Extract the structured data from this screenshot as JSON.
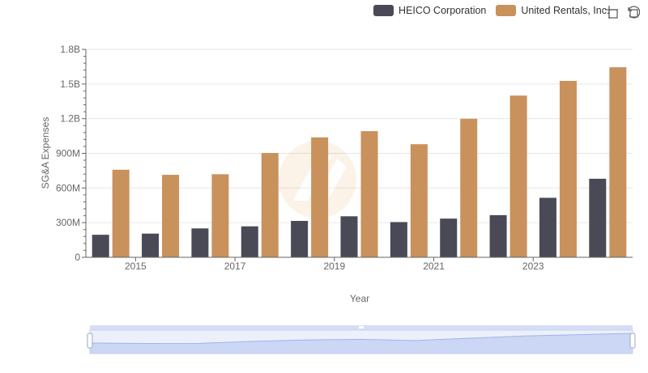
{
  "legend": {
    "items": [
      {
        "name": "HEICO Corporation",
        "color": "#4a4a57"
      },
      {
        "name": "United Rentals, Inc.",
        "color": "#c9915c"
      }
    ]
  },
  "toolbar": {
    "icons": [
      "zoom-icon",
      "restore-icon"
    ]
  },
  "chart_data": {
    "type": "bar",
    "xlabel": "Year",
    "ylabel": "SG&A Expenses",
    "categories": [
      "2014",
      "2015",
      "2016",
      "2017",
      "2018",
      "2019",
      "2020",
      "2021",
      "2022",
      "2023",
      "2024"
    ],
    "x_tick_labels": [
      "2015",
      "2017",
      "2019",
      "2021",
      "2023"
    ],
    "y_tick_labels": [
      "0",
      "300M",
      "600M",
      "900M",
      "1.2B",
      "1.5B",
      "1.8B"
    ],
    "ylim": [
      0,
      1800000000
    ],
    "grid": true,
    "legend_position": "top-right",
    "series": [
      {
        "name": "HEICO Corporation",
        "color": "#4a4a57",
        "values": [
          195000000,
          205000000,
          250000000,
          268000000,
          315000000,
          355000000,
          305000000,
          335000000,
          365000000,
          515000000,
          680000000
        ]
      },
      {
        "name": "United Rentals, Inc.",
        "color": "#c9915c",
        "values": [
          758000000,
          714000000,
          719000000,
          903000000,
          1038000000,
          1092000000,
          979000000,
          1199000000,
          1400000000,
          1527000000,
          1645000000
        ]
      }
    ]
  }
}
